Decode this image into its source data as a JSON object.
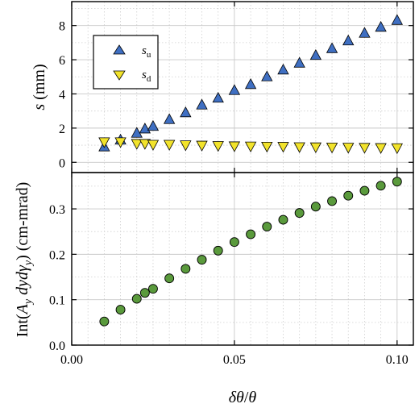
{
  "chart_data": [
    {
      "type": "scatter",
      "xlabel_parts": [
        "δθ",
        "/",
        "θ"
      ],
      "ylabel_parts": [
        "s",
        " (mm)"
      ],
      "xlim": [
        0.0,
        0.105
      ],
      "ylim": [
        -0.6,
        9.4
      ],
      "yticks": [
        0,
        2,
        4,
        6,
        8
      ],
      "xticks": [
        0.0,
        0.05,
        0.1
      ],
      "grid": true,
      "legend_position": "upper-left",
      "series": [
        {
          "name_base": "s",
          "name_sub": "u",
          "marker": "triangle-up",
          "color": "#3f6fc2",
          "x": [
            0.01,
            0.015,
            0.02,
            0.0225,
            0.025,
            0.03,
            0.035,
            0.04,
            0.045,
            0.05,
            0.055,
            0.06,
            0.065,
            0.07,
            0.075,
            0.08,
            0.085,
            0.09,
            0.095,
            0.1
          ],
          "y": [
            0.9,
            1.3,
            1.7,
            1.95,
            2.1,
            2.5,
            2.9,
            3.35,
            3.75,
            4.2,
            4.55,
            5.0,
            5.4,
            5.8,
            6.25,
            6.65,
            7.1,
            7.55,
            7.9,
            8.3
          ]
        },
        {
          "name_base": "s",
          "name_sub": "d",
          "marker": "triangle-down",
          "color": "#f2e32b",
          "x": [
            0.01,
            0.015,
            0.02,
            0.0225,
            0.025,
            0.03,
            0.035,
            0.04,
            0.045,
            0.05,
            0.055,
            0.06,
            0.065,
            0.07,
            0.075,
            0.08,
            0.085,
            0.09,
            0.095,
            0.1
          ],
          "y": [
            1.2,
            1.2,
            1.1,
            1.1,
            1.05,
            1.05,
            1.02,
            1.0,
            0.98,
            0.96,
            0.95,
            0.94,
            0.93,
            0.91,
            0.9,
            0.89,
            0.88,
            0.87,
            0.86,
            0.85
          ]
        }
      ]
    },
    {
      "type": "scatter",
      "xlabel_parts": [
        "δθ",
        "/",
        "θ"
      ],
      "ylabel_parts": [
        "Int(",
        "A",
        "y",
        " dyd",
        "γ",
        "y",
        ") (cm-mrad)"
      ],
      "xlim": [
        0.0,
        0.105
      ],
      "ylim": [
        0.0,
        0.38
      ],
      "yticks": [
        0.0,
        0.1,
        0.2,
        0.3
      ],
      "xticks": [
        0.0,
        0.05,
        0.1
      ],
      "grid": true,
      "series": [
        {
          "marker": "circle",
          "color": "#5a9a3c",
          "x": [
            0.01,
            0.015,
            0.02,
            0.0225,
            0.025,
            0.03,
            0.035,
            0.04,
            0.045,
            0.05,
            0.055,
            0.06,
            0.065,
            0.07,
            0.075,
            0.08,
            0.085,
            0.09,
            0.095,
            0.1
          ],
          "y": [
            0.052,
            0.078,
            0.102,
            0.115,
            0.124,
            0.147,
            0.168,
            0.188,
            0.208,
            0.227,
            0.244,
            0.261,
            0.276,
            0.291,
            0.305,
            0.317,
            0.329,
            0.34,
            0.351,
            0.36
          ]
        }
      ]
    }
  ],
  "tick_labels": {
    "top_y": [
      "0",
      "2",
      "4",
      "6",
      "8"
    ],
    "bottom_y": [
      "0.0",
      "0.1",
      "0.2",
      "0.3"
    ],
    "x": [
      "0.00",
      "0.05",
      "0.10"
    ]
  }
}
